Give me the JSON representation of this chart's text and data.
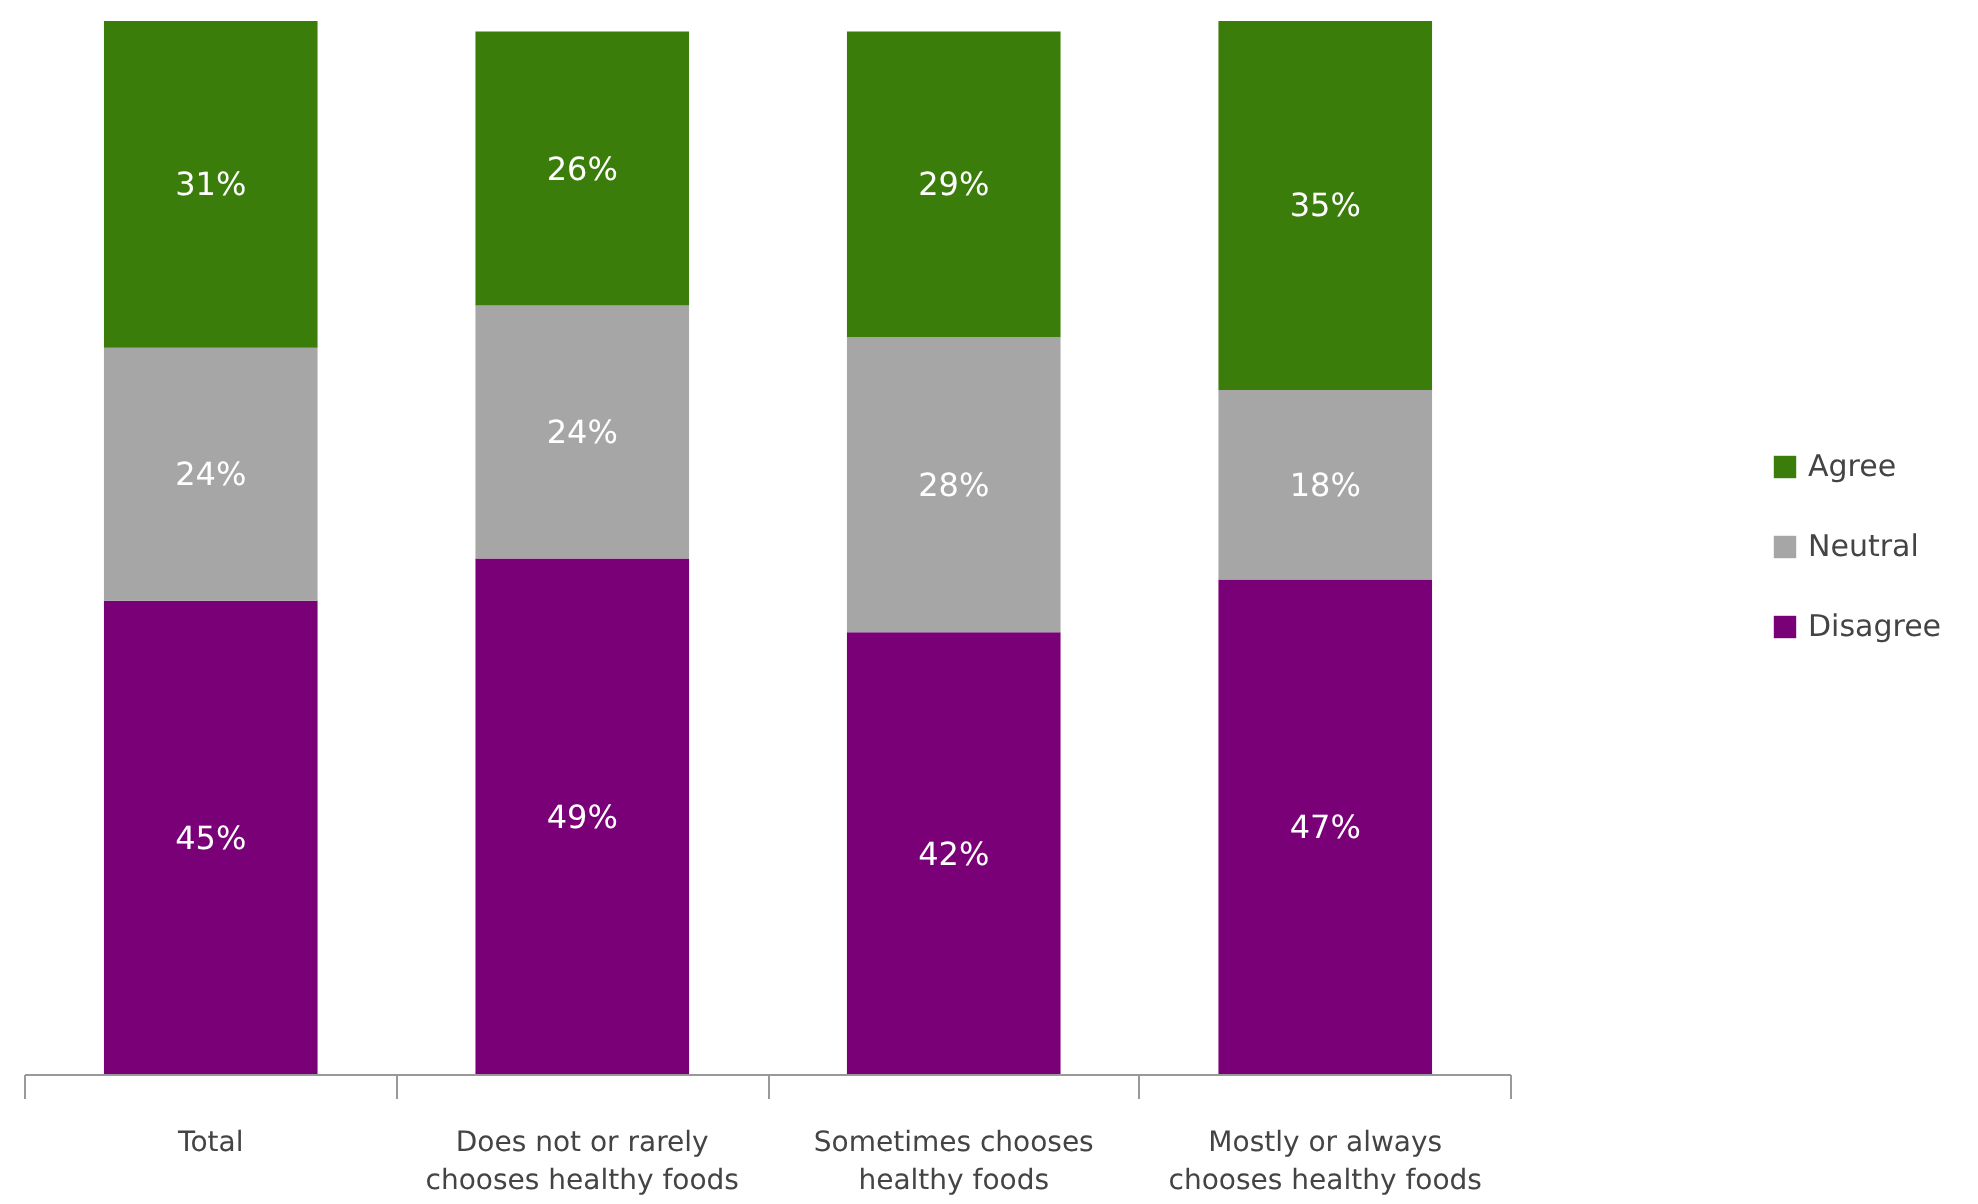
{
  "chart_data": {
    "type": "bar",
    "stacked": true,
    "categories": [
      "Total",
      "Does not or rarely chooses healthy foods",
      "Sometimes chooses healthy foods",
      "Mostly or always chooses healthy foods"
    ],
    "series": [
      {
        "name": "Disagree",
        "color": "#7a0078",
        "values": [
          45,
          49,
          42,
          47
        ],
        "value_labels": [
          "45%",
          "49%",
          "42%",
          "47%"
        ]
      },
      {
        "name": "Neutral",
        "color": "#a6a6a6",
        "values": [
          24,
          24,
          28,
          18
        ],
        "value_labels": [
          "24%",
          "24%",
          "28%",
          "18%"
        ]
      },
      {
        "name": "Agree",
        "color": "#3a7d0a",
        "values": [
          31,
          26,
          29,
          35
        ],
        "value_labels": [
          "31%",
          "26%",
          "29%",
          "35%"
        ]
      }
    ],
    "ylim": [
      0,
      100
    ],
    "tick_labels": "x",
    "legend": "right",
    "grid": false
  }
}
